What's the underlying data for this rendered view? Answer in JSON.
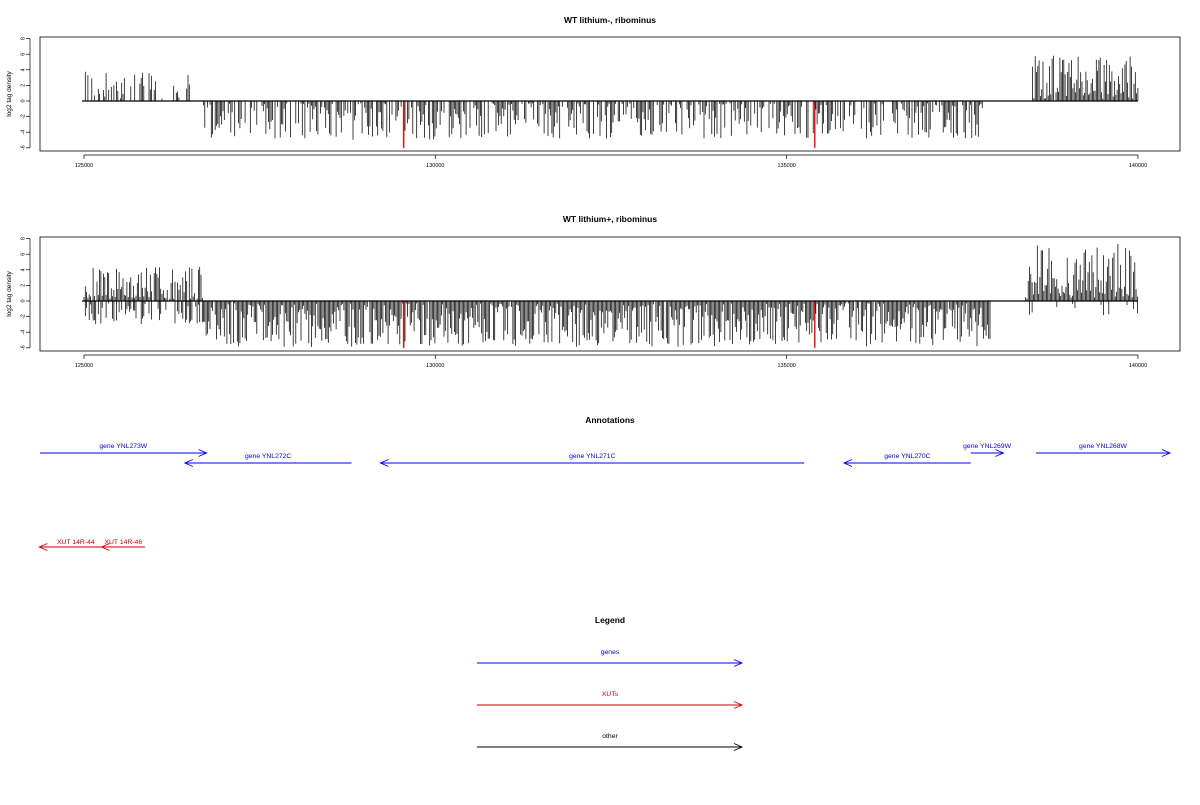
{
  "chart_data": [
    {
      "type": "bar",
      "title": "WT lithium-, ribominus",
      "ylabel": "log2 tag density",
      "xlim": [
        125000,
        140000
      ],
      "ylim": [
        -6,
        8
      ],
      "yticks": [
        "8",
        "6",
        "4",
        "2",
        "0",
        "-2",
        "-4",
        "-6"
      ],
      "xticks": [
        "125000",
        "130000",
        "135000",
        "140000"
      ],
      "highlight_color": "#ff0000",
      "bar_color": "#000000",
      "highlights": [
        {
          "x": 129550,
          "y": -6
        },
        {
          "x": 135400,
          "y": -6
        }
      ],
      "density_profile": [
        {
          "from": 125000,
          "to": 126500,
          "sign": 1,
          "density": 0.45,
          "max": 4
        },
        {
          "from": 126700,
          "to": 137800,
          "sign": -1,
          "density": 0.7,
          "max": 5
        },
        {
          "from": 138500,
          "to": 140000,
          "sign": 1,
          "density": 0.95,
          "max": 6
        }
      ]
    },
    {
      "type": "bar",
      "title": "WT lithium+, ribominus",
      "ylabel": "log2 tag density",
      "xlim": [
        125000,
        140000
      ],
      "ylim": [
        -6,
        8
      ],
      "yticks": [
        "8",
        "6",
        "4",
        "2",
        "0",
        "-2",
        "-4",
        "-6"
      ],
      "xticks": [
        "125000",
        "130000",
        "135000",
        "140000"
      ],
      "highlight_color": "#ff0000",
      "bar_color": "#000000",
      "highlights": [
        {
          "x": 129550,
          "y": -6
        },
        {
          "x": 135400,
          "y": -6
        }
      ],
      "density_profile": [
        {
          "from": 125000,
          "to": 126700,
          "sign": 1,
          "density": 0.9,
          "max": 4.5
        },
        {
          "from": 125000,
          "to": 126700,
          "sign": -1,
          "density": 0.6,
          "max": 3
        },
        {
          "from": 126700,
          "to": 137900,
          "sign": -1,
          "density": 0.98,
          "max": 6
        },
        {
          "from": 138400,
          "to": 140000,
          "sign": 1,
          "density": 0.98,
          "max": 7.5
        },
        {
          "from": 138400,
          "to": 140000,
          "sign": -1,
          "density": 0.15,
          "max": 2
        }
      ]
    }
  ],
  "annotations": {
    "title": "Annotations",
    "genes": [
      {
        "label": "gene YNL273W",
        "start": 124850,
        "end": 127150,
        "strand": "+"
      },
      {
        "label": "gene YNL272C",
        "start": 129150,
        "end": 126850,
        "strand": "-"
      },
      {
        "label": "gene YNL271C",
        "start": 135400,
        "end": 129550,
        "strand": "-"
      },
      {
        "label": "gene YNL270C",
        "start": 137700,
        "end": 135950,
        "strand": "-"
      },
      {
        "label": "gene YNL269W",
        "start": 137700,
        "end": 138150,
        "strand": "+"
      },
      {
        "label": "gene YNL268W",
        "start": 138600,
        "end": 140450,
        "strand": "+"
      }
    ],
    "xuts": [
      {
        "label": "XUT 14R-44",
        "start": 125850,
        "end": 124840,
        "strand": "-"
      },
      {
        "label": "XUT 14R-46",
        "start": 126300,
        "end": 125700,
        "strand": "-"
      }
    ]
  },
  "legend": {
    "title": "Legend",
    "items": [
      {
        "label": "genes",
        "color": "#0000ff"
      },
      {
        "label": "XUTs",
        "color": "#cc0000"
      },
      {
        "label": "other",
        "color": "#000000"
      }
    ]
  }
}
